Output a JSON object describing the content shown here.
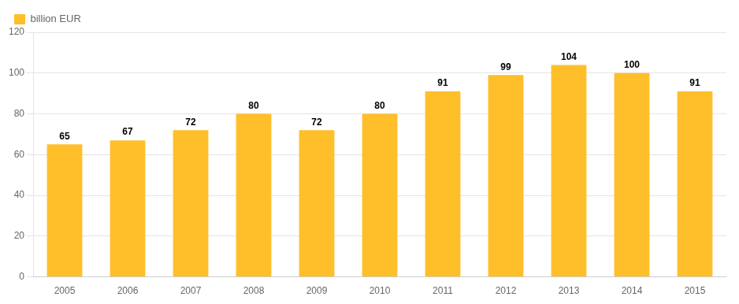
{
  "chart_data": {
    "type": "bar",
    "categories": [
      "2005",
      "2006",
      "2007",
      "2008",
      "2009",
      "2010",
      "2011",
      "2012",
      "2013",
      "2014",
      "2015"
    ],
    "series": [
      {
        "name": "billion EUR",
        "color": "#FFBF2A",
        "values": [
          65,
          67,
          72,
          80,
          72,
          80,
          91,
          99,
          104,
          100,
          91
        ]
      }
    ],
    "ylim": [
      0,
      120
    ],
    "yticks": [
      0,
      20,
      40,
      60,
      80,
      100,
      120
    ],
    "grid": true,
    "legend": "upper left",
    "data_labels": true
  }
}
